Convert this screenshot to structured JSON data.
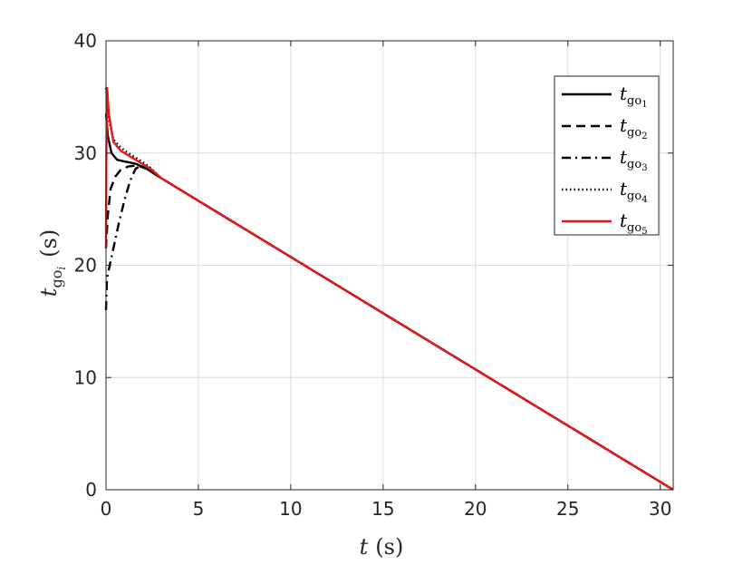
{
  "chart_data": {
    "type": "line",
    "xlabel": {
      "var": "t",
      "unit": "(s)"
    },
    "ylabel": {
      "var": "t",
      "sub": "go",
      "subsub": "i",
      "unit": "(s)"
    },
    "xlim": [
      0,
      30.7
    ],
    "ylim": [
      0,
      40
    ],
    "xticks": [
      "0",
      "5",
      "10",
      "15",
      "20",
      "25",
      "30"
    ],
    "yticks": [
      "0",
      "10",
      "20",
      "30",
      "40"
    ],
    "grid": true,
    "legend_position": "top-right",
    "series": [
      {
        "name": {
          "var": "t",
          "sub": "go",
          "idx": "1"
        },
        "style": "solid",
        "color": "#000000",
        "points": [
          [
            0,
            33.5
          ],
          [
            0.1,
            31.5
          ],
          [
            0.3,
            30.0
          ],
          [
            0.6,
            29.4
          ],
          [
            1.0,
            29.25
          ],
          [
            1.6,
            29.05
          ],
          [
            2.2,
            28.6
          ],
          [
            3,
            27.75
          ],
          [
            30.7,
            0
          ]
        ]
      },
      {
        "name": {
          "var": "t",
          "sub": "go",
          "idx": "2"
        },
        "style": "dashed",
        "color": "#000000",
        "points": [
          [
            0,
            21.5
          ],
          [
            0.1,
            24.5
          ],
          [
            0.25,
            26.8
          ],
          [
            0.5,
            27.9
          ],
          [
            0.8,
            28.5
          ],
          [
            1.2,
            28.8
          ],
          [
            1.7,
            28.9
          ],
          [
            2.2,
            28.6
          ],
          [
            3,
            27.75
          ],
          [
            30.7,
            0
          ]
        ]
      },
      {
        "name": {
          "var": "t",
          "sub": "go",
          "idx": "3"
        },
        "style": "dashdot",
        "color": "#000000",
        "points": [
          [
            0,
            16
          ],
          [
            0.05,
            18.8
          ],
          [
            0.2,
            20.0
          ],
          [
            0.4,
            21.5
          ],
          [
            0.7,
            23.8
          ],
          [
            1.0,
            25.8
          ],
          [
            1.3,
            27.5
          ],
          [
            1.6,
            28.6
          ],
          [
            1.9,
            28.9
          ],
          [
            2.3,
            28.55
          ],
          [
            3,
            27.75
          ],
          [
            30.7,
            0
          ]
        ]
      },
      {
        "name": {
          "var": "t",
          "sub": "go",
          "idx": "4"
        },
        "style": "dotted",
        "color": "#000000",
        "points": [
          [
            0,
            35.8
          ],
          [
            0.15,
            33.0
          ],
          [
            0.4,
            31.2
          ],
          [
            0.8,
            30.5
          ],
          [
            1.2,
            30.0
          ],
          [
            1.8,
            29.4
          ],
          [
            2.4,
            28.7
          ],
          [
            3,
            27.75
          ],
          [
            30.7,
            0
          ]
        ]
      },
      {
        "name": {
          "var": "t",
          "sub": "go",
          "idx": "5"
        },
        "style": "solid",
        "color": "#e31a1c",
        "points": [
          [
            0,
            21.5
          ],
          [
            0.02,
            30
          ],
          [
            0.06,
            35.8
          ],
          [
            0.15,
            33.5
          ],
          [
            0.4,
            31.0
          ],
          [
            0.8,
            30.2
          ],
          [
            1.2,
            29.8
          ],
          [
            1.8,
            29.2
          ],
          [
            2.4,
            28.6
          ],
          [
            3,
            27.75
          ],
          [
            30.7,
            0
          ]
        ]
      }
    ]
  }
}
